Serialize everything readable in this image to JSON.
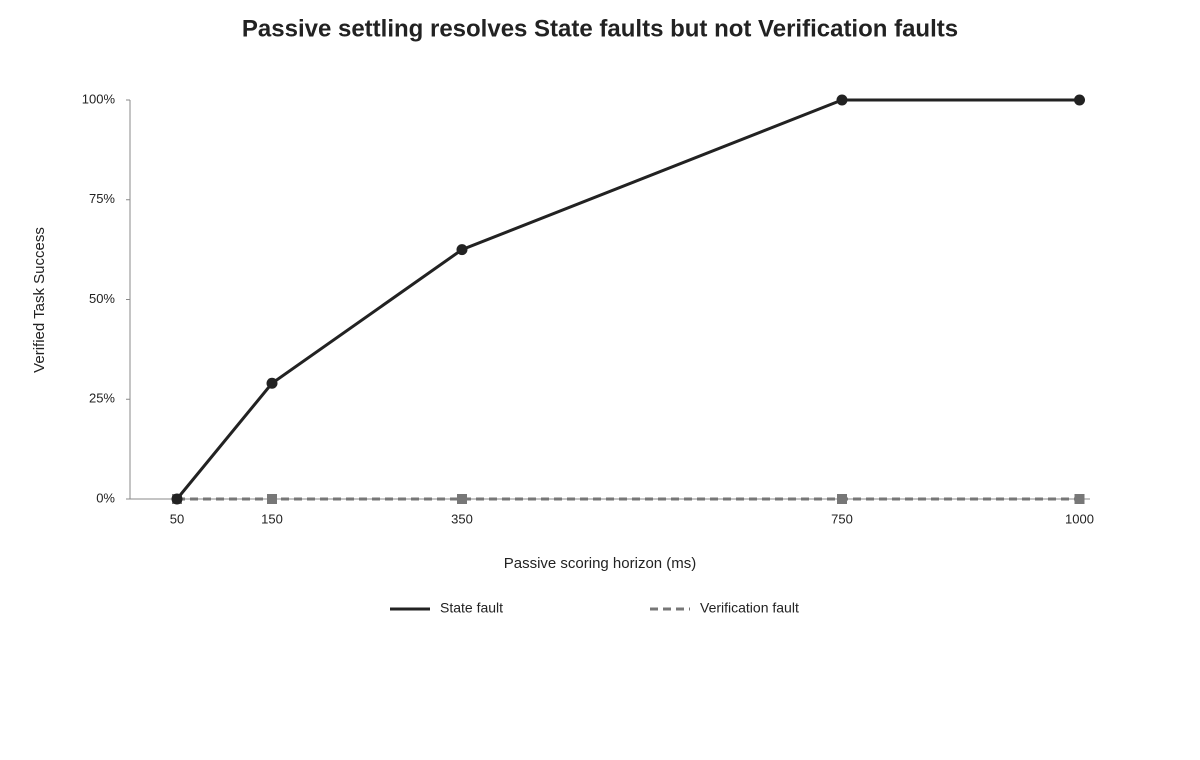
{
  "chart_data": {
    "type": "line",
    "title": "Passive settling resolves State faults but not Verification faults",
    "x_label": "Passive scoring horizon (ms)",
    "y_label": "Verified Task Success",
    "x": [
      50,
      150,
      350,
      750,
      1000
    ],
    "series": [
      {
        "name": "State fault",
        "color": "#222222",
        "marker": "circle",
        "dashed": false,
        "values": [
          0,
          29,
          62.5,
          100,
          100
        ]
      },
      {
        "name": "Verification fault",
        "color": "#777777",
        "marker": "square",
        "dashed": true,
        "values": [
          0,
          0,
          0,
          0,
          0
        ]
      }
    ],
    "xlim": [
      0,
      1000
    ],
    "xticks": [
      50,
      150,
      350,
      750,
      1000
    ],
    "ylim": [
      0,
      100
    ],
    "yticks": [
      {
        "value": 0,
        "label": "0%"
      },
      {
        "value": 25,
        "label": "25%"
      },
      {
        "value": 50,
        "label": "50%"
      },
      {
        "value": 75,
        "label": "75%"
      },
      {
        "value": 100,
        "label": "100%"
      }
    ],
    "grid": false,
    "legend": "bottom"
  }
}
